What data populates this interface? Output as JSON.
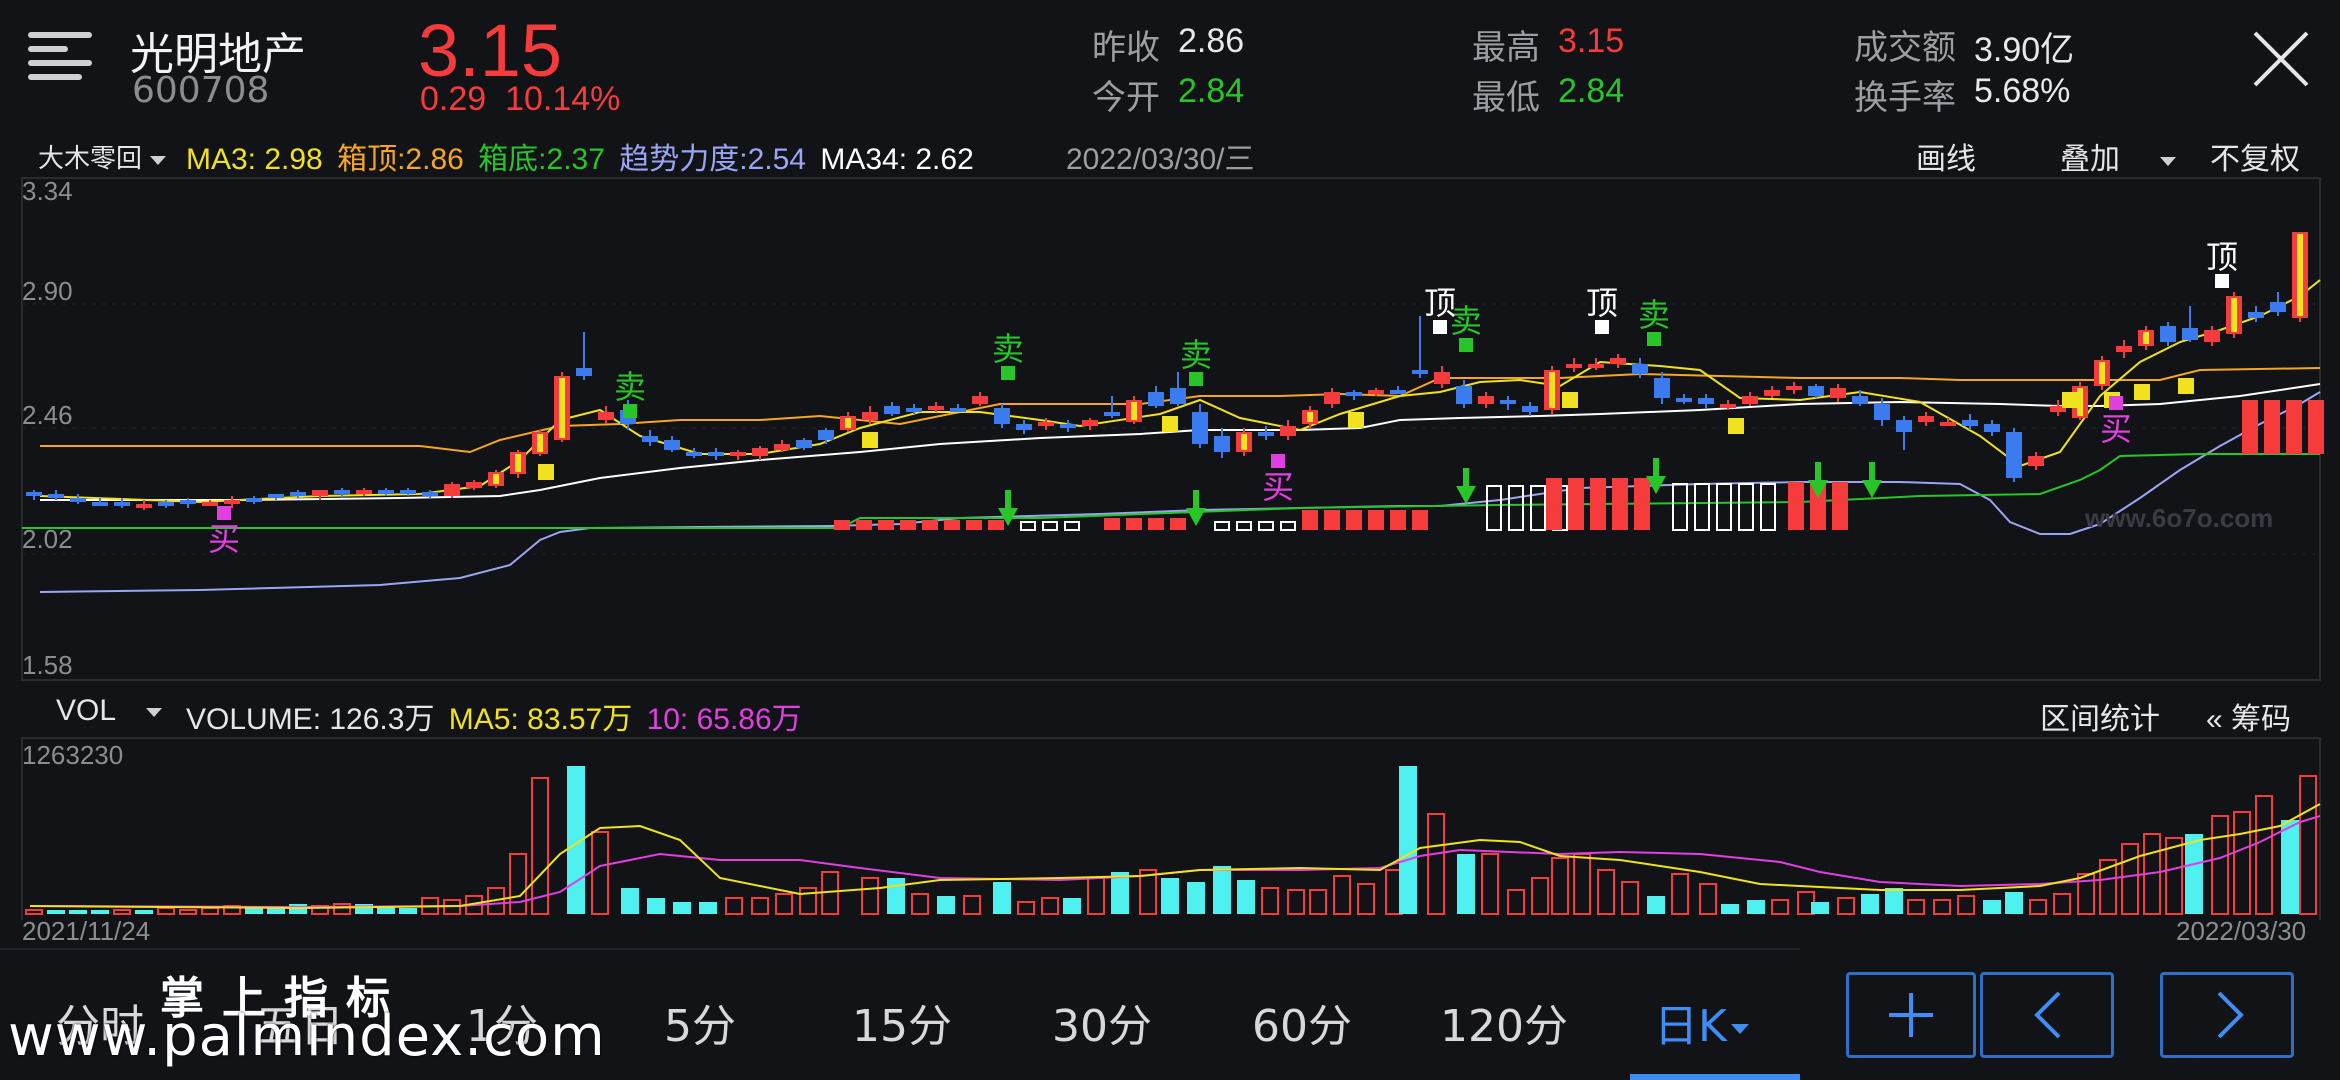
{
  "header": {
    "name": "光明地产",
    "code": "600708",
    "price": "3.15",
    "change": "0.29",
    "change_pct": "10.14%",
    "quote": [
      {
        "label": "昨收",
        "value": "2.86",
        "color": "#e8e8e8"
      },
      {
        "label": "今开",
        "value": "2.84",
        "color": "#27c527"
      },
      {
        "label": "最高",
        "value": "3.15",
        "color": "#f53b3b"
      },
      {
        "label": "最低",
        "value": "2.84",
        "color": "#27c527"
      },
      {
        "label": "成交额",
        "value": "3.90亿",
        "color": "#e8e8e8"
      },
      {
        "label": "换手率",
        "value": "5.68%",
        "color": "#e8e8e8"
      }
    ]
  },
  "indicator": {
    "selector": "大木零回",
    "ma3": "MA3: 2.98",
    "box_top": "箱顶:2.86",
    "box_bottom": "箱底:2.37",
    "trend": "趋势力度:2.54",
    "ma34": "MA34: 2.62",
    "date": "2022/03/30/三",
    "draw_label": "画线",
    "overlay_label": "叠加",
    "adjust_label": "不复权"
  },
  "price_axis": [
    "3.34",
    "2.90",
    "2.46",
    "2.02",
    "1.58"
  ],
  "signals": {
    "buy": "买",
    "sell": "卖",
    "top": "顶"
  },
  "chart_watermark": "www.6o7o.com",
  "volume": {
    "selector": "VOL",
    "volume_label": "VOLUME: 126.3万",
    "ma5_label": "MA5: 83.57万",
    "ma10_label": "10: 65.86万",
    "max_label": "1263230",
    "interval_label": "区间统计",
    "chips_label": "« 筹码"
  },
  "dates": {
    "start": "2021/11/24",
    "end": "2022/03/30"
  },
  "periods": [
    "分时",
    "五日",
    "1分",
    "5分",
    "15分",
    "30分",
    "60分",
    "120分",
    "日K"
  ],
  "active_period": "日K",
  "watermark": {
    "cn": "掌上指标",
    "url": "www.palmindex.com"
  },
  "colors": {
    "up": "#f53b3b",
    "down_blue": "#3b7bf0",
    "down_cyan": "#4ef0f0",
    "ma3": "#f0e21c",
    "box_top": "#f5a623",
    "box_bottom": "#27c527",
    "trend": "#9aa6f5",
    "ma34": "#ffffff",
    "accent": "#3f8ef5"
  }
}
